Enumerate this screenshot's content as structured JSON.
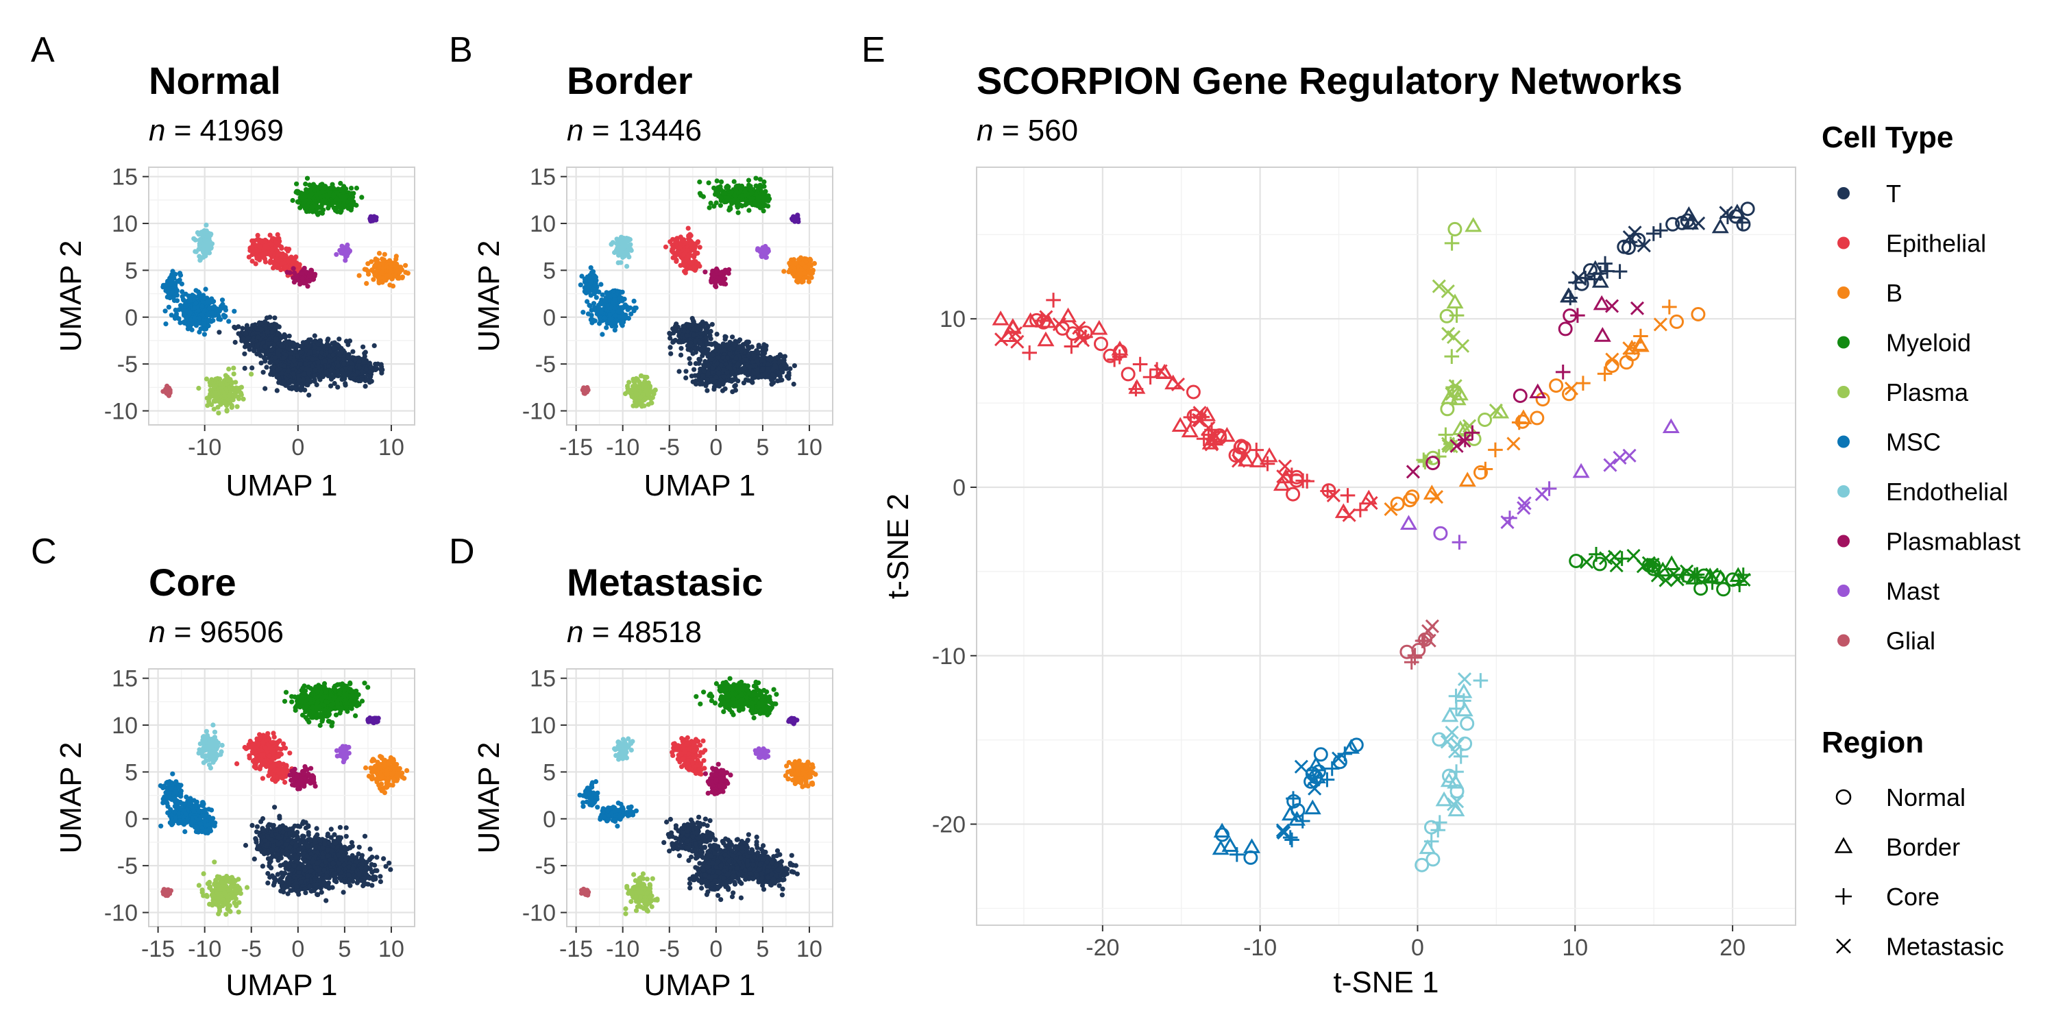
{
  "colors": {
    "T": "#1f3556",
    "Epithelial": "#e63946",
    "B": "#f58518",
    "Myeloid": "#128a12",
    "Plasma": "#9bc955",
    "MSC": "#0b75b5",
    "Endothelial": "#7ecbd8",
    "Plasmablast": "#a1115f",
    "Mast": "#9a55d6",
    "Glial": "#c05667",
    "Purple2": "#5a1a9e"
  },
  "chart_data": [
    {
      "type": "scatter",
      "panel_label": "A",
      "title": "Normal",
      "subtitle_n": "41969",
      "xlabel": "UMAP 1",
      "ylabel": "UMAP 2",
      "xlim": [
        -16,
        12.5
      ],
      "ylim": [
        -11.5,
        16
      ],
      "xticks": [
        -10,
        0,
        10
      ],
      "yticks": [
        -10,
        -5,
        0,
        5,
        10,
        15
      ],
      "clusters": [
        {
          "cell_type": "T",
          "blobs": [
            [
              -4,
              -2,
              2,
              1.5
            ],
            [
              2,
              -4.5,
              3,
              1.8
            ],
            [
              6,
              -5.5,
              2.4,
              1.3
            ],
            [
              0,
              -6,
              2,
              1.4
            ],
            [
              -2,
              -4,
              1.8,
              1.4
            ]
          ]
        },
        {
          "cell_type": "Epithelial",
          "blobs": [
            [
              -3.5,
              7.3,
              1.6,
              1.1
            ],
            [
              -1.5,
              6,
              1.2,
              0.8
            ],
            [
              -0.5,
              5,
              0.8,
              0.6
            ]
          ]
        },
        {
          "cell_type": "Myeloid",
          "blobs": [
            [
              2.5,
              13,
              2.4,
              1.2
            ],
            [
              5,
              12.5,
              1.2,
              0.9
            ],
            [
              1.5,
              11.8,
              1,
              0.6
            ]
          ]
        },
        {
          "cell_type": "Plasma",
          "blobs": [
            [
              -8,
              -8,
              1.5,
              1.6
            ]
          ]
        },
        {
          "cell_type": "MSC",
          "blobs": [
            [
              -10.5,
              0.5,
              2.2,
              1.3
            ],
            [
              -13.5,
              3.2,
              0.8,
              1.2
            ],
            [
              -11.2,
              0.8,
              1.3,
              1.4
            ]
          ]
        },
        {
          "cell_type": "Endothelial",
          "blobs": [
            [
              -10,
              7.7,
              0.8,
              1.3
            ]
          ]
        },
        {
          "cell_type": "Plasmablast",
          "blobs": [
            [
              0.8,
              4.3,
              1.2,
              0.7
            ]
          ]
        },
        {
          "cell_type": "Mast",
          "blobs": [
            [
              5,
              7,
              0.6,
              0.5
            ]
          ]
        },
        {
          "cell_type": "B",
          "blobs": [
            [
              9.5,
              5,
              1.6,
              1.1
            ]
          ]
        },
        {
          "cell_type": "Glial",
          "blobs": [
            [
              -14,
              -7.8,
              0.3,
              0.3
            ]
          ]
        },
        {
          "cell_type": "Purple2",
          "blobs": [
            [
              8,
              10.5,
              0.4,
              0.3
            ]
          ]
        }
      ]
    },
    {
      "type": "scatter",
      "panel_label": "B",
      "title": "Border",
      "subtitle_n": "13446",
      "xlabel": "UMAP 1",
      "ylabel": "UMAP 2",
      "xlim": [
        -16,
        12.5
      ],
      "ylim": [
        -11.5,
        16
      ],
      "xticks": [
        -15,
        -10,
        -5,
        0,
        5,
        10
      ],
      "yticks": [
        -10,
        -5,
        0,
        5,
        10,
        15
      ],
      "clusters": [
        {
          "cell_type": "T",
          "blobs": [
            [
              -2.5,
              -2,
              1.8,
              1.4
            ],
            [
              2,
              -4.5,
              3,
              1.6
            ],
            [
              5.5,
              -5.5,
              2.2,
              1.2
            ],
            [
              0,
              -6,
              2,
              1.2
            ]
          ]
        },
        {
          "cell_type": "Epithelial",
          "blobs": [
            [
              -3.5,
              7.3,
              1.3,
              1.2
            ],
            [
              -2.5,
              5.5,
              0.8,
              0.6
            ]
          ]
        },
        {
          "cell_type": "Myeloid",
          "blobs": [
            [
              2.5,
              13,
              2.4,
              1.2
            ],
            [
              4.8,
              12.5,
              1,
              0.9
            ]
          ]
        },
        {
          "cell_type": "Plasma",
          "blobs": [
            [
              -8,
              -8,
              1.1,
              1.4
            ]
          ]
        },
        {
          "cell_type": "MSC",
          "blobs": [
            [
              -11.5,
              0.5,
              1.8,
              1.2
            ],
            [
              -13.5,
              3.5,
              0.8,
              1.1
            ],
            [
              -11,
              2,
              1,
              1
            ]
          ]
        },
        {
          "cell_type": "Endothelial",
          "blobs": [
            [
              -10,
              7.5,
              0.8,
              1.1
            ]
          ]
        },
        {
          "cell_type": "Plasmablast",
          "blobs": [
            [
              0.2,
              4.3,
              1,
              0.8
            ]
          ]
        },
        {
          "cell_type": "Mast",
          "blobs": [
            [
              5,
              7,
              0.6,
              0.5
            ]
          ]
        },
        {
          "cell_type": "B",
          "blobs": [
            [
              9.2,
              5,
              1.2,
              1.2
            ]
          ]
        },
        {
          "cell_type": "Glial",
          "blobs": [
            [
              -14,
              -7.8,
              0.3,
              0.3
            ]
          ]
        },
        {
          "cell_type": "Purple2",
          "blobs": [
            [
              8.5,
              10.5,
              0.3,
              0.3
            ]
          ]
        }
      ]
    },
    {
      "type": "scatter",
      "panel_label": "C",
      "title": "Core",
      "subtitle_n": "96506",
      "xlabel": "UMAP 1",
      "ylabel": "UMAP 2",
      "xlim": [
        -16,
        12.5
      ],
      "ylim": [
        -11.5,
        16
      ],
      "xticks": [
        -15,
        -10,
        -5,
        0,
        5,
        10
      ],
      "yticks": [
        -10,
        -5,
        0,
        5,
        10,
        15
      ],
      "clusters": [
        {
          "cell_type": "T",
          "blobs": [
            [
              -2,
              -2.5,
              2.2,
              1.8
            ],
            [
              2.5,
              -4,
              3,
              2
            ],
            [
              6,
              -5.5,
              2.2,
              1.3
            ],
            [
              0.5,
              -6.5,
              2.4,
              1.3
            ]
          ]
        },
        {
          "cell_type": "Epithelial",
          "blobs": [
            [
              -3.5,
              7.2,
              1.8,
              1.5
            ],
            [
              -2,
              5,
              1,
              0.8
            ]
          ]
        },
        {
          "cell_type": "Myeloid",
          "blobs": [
            [
              2.5,
              12.5,
              2.6,
              1.6
            ],
            [
              5,
              13,
              1.4,
              1.1
            ]
          ]
        },
        {
          "cell_type": "Plasma",
          "blobs": [
            [
              -8,
              -8,
              1.5,
              1.6
            ]
          ]
        },
        {
          "cell_type": "MSC",
          "blobs": [
            [
              -11.5,
              0.5,
              2,
              1.2
            ],
            [
              -13.5,
              3,
              0.9,
              1.2
            ],
            [
              -10,
              -0.5,
              1.2,
              0.8
            ]
          ]
        },
        {
          "cell_type": "Endothelial",
          "blobs": [
            [
              -9.5,
              7.5,
              0.9,
              1.4
            ]
          ]
        },
        {
          "cell_type": "Plasmablast",
          "blobs": [
            [
              0.5,
              4.3,
              1.1,
              1
            ]
          ]
        },
        {
          "cell_type": "Mast",
          "blobs": [
            [
              5,
              7,
              0.7,
              0.6
            ]
          ]
        },
        {
          "cell_type": "B",
          "blobs": [
            [
              9.3,
              5,
              1.5,
              1.3
            ]
          ]
        },
        {
          "cell_type": "Glial",
          "blobs": [
            [
              -14,
              -7.8,
              0.3,
              0.3
            ]
          ]
        },
        {
          "cell_type": "Purple2",
          "blobs": [
            [
              8,
              10.5,
              0.6,
              0.3
            ]
          ]
        }
      ]
    },
    {
      "type": "scatter",
      "panel_label": "D",
      "title": "Metastasic",
      "subtitle_n": "48518",
      "xlabel": "UMAP 1",
      "ylabel": "UMAP 2",
      "xlim": [
        -16,
        12.5
      ],
      "ylim": [
        -11.5,
        16
      ],
      "xticks": [
        -15,
        -10,
        -5,
        0,
        5,
        10
      ],
      "yticks": [
        -10,
        -5,
        0,
        5,
        10,
        15
      ],
      "clusters": [
        {
          "cell_type": "T",
          "blobs": [
            [
              -2.5,
              -2,
              1.8,
              1.5
            ],
            [
              2,
              -4.5,
              3,
              1.8
            ],
            [
              5.5,
              -5.5,
              2.2,
              1.3
            ],
            [
              0,
              -6,
              2,
              1.4
            ]
          ]
        },
        {
          "cell_type": "Epithelial",
          "blobs": [
            [
              -3,
              7.2,
              1.3,
              1.3
            ],
            [
              -2.5,
              5.5,
              0.9,
              0.6
            ]
          ]
        },
        {
          "cell_type": "Myeloid",
          "blobs": [
            [
              2.5,
              13,
              2.4,
              1.3
            ],
            [
              5,
              12,
              1,
              0.9
            ]
          ]
        },
        {
          "cell_type": "Plasma",
          "blobs": [
            [
              -8,
              -8,
              1.2,
              1.4
            ]
          ]
        },
        {
          "cell_type": "MSC",
          "blobs": [
            [
              -11,
              0.5,
              1.6,
              0.8
            ],
            [
              -13.5,
              2.5,
              0.7,
              1
            ]
          ]
        },
        {
          "cell_type": "Endothelial",
          "blobs": [
            [
              -10,
              7.5,
              0.7,
              1
            ]
          ]
        },
        {
          "cell_type": "Plasmablast",
          "blobs": [
            [
              0.3,
              4,
              1,
              1.2
            ]
          ]
        },
        {
          "cell_type": "Mast",
          "blobs": [
            [
              5,
              7,
              0.6,
              0.5
            ]
          ]
        },
        {
          "cell_type": "B",
          "blobs": [
            [
              9.2,
              5,
              1.2,
              1.1
            ]
          ]
        },
        {
          "cell_type": "Glial",
          "blobs": [
            [
              -14,
              -7.8,
              0.3,
              0.3
            ]
          ]
        },
        {
          "cell_type": "Purple2",
          "blobs": [
            [
              8.2,
              10.5,
              0.4,
              0.3
            ]
          ]
        }
      ]
    },
    {
      "type": "scatter",
      "panel_label": "E",
      "title": "SCORPION Gene Regulatory Networks",
      "subtitle_n": "560",
      "xlabel": "t-SNE 1",
      "ylabel": "t-SNE 2",
      "xlim": [
        -28,
        24
      ],
      "ylim": [
        -26,
        19
      ],
      "xticks": [
        -20,
        -10,
        0,
        10,
        20
      ],
      "yticks": [
        -20,
        -10,
        0,
        10
      ],
      "clusters": [
        {
          "cell_type": "T",
          "path": [
            [
              9,
              11
            ],
            [
              12,
              13
            ],
            [
              15,
              15.5
            ],
            [
              18,
              16
            ],
            [
              21,
              15.8
            ]
          ],
          "n": 38,
          "spread": 0.8
        },
        {
          "cell_type": "Epithelial",
          "path": [
            [
              -26,
              10
            ],
            [
              -21,
              9
            ],
            [
              -16,
              6
            ],
            [
              -13,
              3
            ],
            [
              -10,
              1.5
            ],
            [
              -6,
              -0.5
            ],
            [
              -3,
              -1
            ]
          ],
          "n": 95,
          "spread": 1.3
        },
        {
          "cell_type": "B",
          "path": [
            [
              -2,
              -1
            ],
            [
              1,
              -0.5
            ],
            [
              3,
              0
            ],
            [
              8,
              5
            ],
            [
              13,
              7.5
            ],
            [
              16,
              10
            ],
            [
              18,
              10.5
            ]
          ],
          "n": 34,
          "spread": 0.6
        },
        {
          "cell_type": "Myeloid",
          "path": [
            [
              10,
              -4.3
            ],
            [
              14,
              -4.5
            ],
            [
              17,
              -5
            ],
            [
              20,
              -5.8
            ],
            [
              22,
              -4.3
            ]
          ],
          "n": 42,
          "spread": 0.6
        },
        {
          "cell_type": "Plasma",
          "path": [
            [
              3,
              16
            ],
            [
              1.5,
              12
            ],
            [
              2.5,
              9
            ],
            [
              2.5,
              6
            ],
            [
              1,
              3
            ],
            [
              0.5,
              1.5
            ],
            [
              5,
              4.5
            ]
          ],
          "n": 36,
          "spread": 0.7
        },
        {
          "cell_type": "MSC",
          "path": [
            [
              -13,
              -21
            ],
            [
              -10,
              -21.5
            ],
            [
              -8,
              -20
            ],
            [
              -6,
              -17
            ],
            [
              -4,
              -15.5
            ]
          ],
          "n": 36,
          "spread": 1.0
        },
        {
          "cell_type": "Endothelial",
          "path": [
            [
              3.2,
              -11.2
            ],
            [
              2.5,
              -15
            ],
            [
              2.5,
              -18.5
            ],
            [
              1,
              -20.5
            ],
            [
              0,
              -22
            ]
          ],
          "n": 32,
          "spread": 0.9
        },
        {
          "cell_type": "Plasmablast",
          "path": [
            [
              9,
              9.5
            ],
            [
              11,
              11
            ],
            [
              14,
              10.5
            ],
            [
              4,
              3.5
            ],
            [
              -0.5,
              0.5
            ]
          ],
          "n": 16,
          "spread": 0.5
        },
        {
          "cell_type": "Mast",
          "path": [
            [
              -1,
              -2
            ],
            [
              1,
              -2.8
            ],
            [
              3,
              -3.3
            ],
            [
              16,
              3.5
            ],
            [
              17,
              3.8
            ]
          ],
          "n": 14,
          "spread": 0.4
        },
        {
          "cell_type": "Glial",
          "path": [
            [
              -0.5,
              -10.5
            ],
            [
              0.5,
              -9
            ],
            [
              1,
              -8
            ]
          ],
          "n": 12,
          "spread": 0.4
        }
      ]
    }
  ],
  "legend": {
    "cell_type_title": "Cell Type",
    "cell_types": [
      "T",
      "Epithelial",
      "B",
      "Myeloid",
      "Plasma",
      "MSC",
      "Endothelial",
      "Plasmablast",
      "Mast",
      "Glial"
    ],
    "region_title": "Region",
    "regions": [
      {
        "label": "Normal",
        "symbol": "circle"
      },
      {
        "label": "Border",
        "symbol": "triangle"
      },
      {
        "label": "Core",
        "symbol": "plus"
      },
      {
        "label": "Metastasic",
        "symbol": "cross"
      }
    ]
  },
  "n_prefix": "n = "
}
